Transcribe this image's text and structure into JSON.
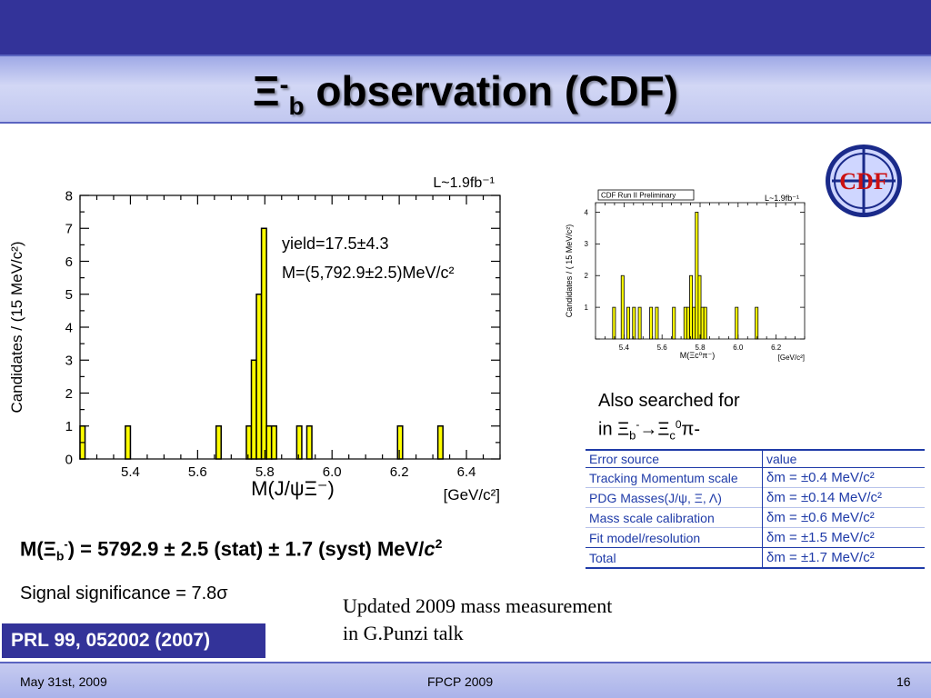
{
  "slide": {
    "title": {
      "xi": "Ξ",
      "sup": "-",
      "sub": "b",
      "rest": " observation (CDF)"
    },
    "main_result": {
      "prefix": "M(Ξ",
      "sub": "b",
      "sup": "-",
      "body": ") = 5792.9 ± 2.5 (stat) ± 1.7 (syst) MeV/",
      "c": "c",
      "exp": "2"
    },
    "significance": "Signal significance = 7.8σ",
    "also_searched": {
      "line1": "Also searched for",
      "line2_prefix": "in Ξ",
      "sub1": "b",
      "sup1": "-",
      "arrow": "→Ξ",
      "sub2": "c",
      "sup2": "0",
      "tail": "π-"
    },
    "updated_note": {
      "line1": "Updated 2009 mass measurement",
      "line2": "in G.Punzi talk"
    },
    "reference": "PRL 99, 052002 (2007)",
    "footer": {
      "date": "May 31st, 2009",
      "conference": "FPCP 2009",
      "page": "16"
    },
    "logo_text": "CDF",
    "colors": {
      "header": "#333399",
      "histogram_fill": "#ffff00",
      "table_text": "#1f3ba8"
    }
  },
  "error_table": {
    "headers": [
      "Error source",
      "value"
    ],
    "rows": [
      {
        "source": "Tracking Momentum scale",
        "value": "δm = ±0.4 MeV/c²"
      },
      {
        "source": "PDG Masses(J/ψ, Ξ, Λ)",
        "value": "δm = ±0.14 MeV/c²"
      },
      {
        "source": "Mass scale calibration",
        "value": "δm = ±0.6 MeV/c²"
      },
      {
        "source": "Fit model/resolution",
        "value": "δm = ±1.5 MeV/c²"
      },
      {
        "source": "Total",
        "value": "δm = ±1.7 MeV/c²"
      }
    ]
  },
  "chart_data": [
    {
      "type": "bar",
      "subtype": "histogram",
      "xlabel": "M(J/ψΞ⁻)",
      "xunit": "[GeV/c²]",
      "ylabel": "Candidates / (15 MeV/c²)",
      "lumi": "L~1.9fb⁻¹",
      "annotations": [
        "yield=17.5±4.3",
        "M=(5,792.9±2.5)MeV/c²"
      ],
      "xlim": [
        5.25,
        6.5
      ],
      "ylim": [
        0,
        8
      ],
      "x_ticks": [
        "5.4",
        "5.6",
        "5.8",
        "6.0",
        "6.2",
        "6.4"
      ],
      "y_ticks": [
        "0",
        "1",
        "2",
        "3",
        "4",
        "5",
        "6",
        "7",
        "8"
      ],
      "bin_width": 0.015,
      "bins": [
        {
          "x": 5.25,
          "count": 1
        },
        {
          "x": 5.385,
          "count": 1
        },
        {
          "x": 5.655,
          "count": 1
        },
        {
          "x": 5.745,
          "count": 1
        },
        {
          "x": 5.76,
          "count": 3
        },
        {
          "x": 5.775,
          "count": 5
        },
        {
          "x": 5.79,
          "count": 7
        },
        {
          "x": 5.805,
          "count": 1
        },
        {
          "x": 5.82,
          "count": 1
        },
        {
          "x": 5.895,
          "count": 1
        },
        {
          "x": 5.925,
          "count": 1
        },
        {
          "x": 6.195,
          "count": 1
        },
        {
          "x": 6.315,
          "count": 1
        }
      ],
      "fill": "#ffff00",
      "grid": false
    },
    {
      "type": "bar",
      "subtype": "histogram",
      "banner": "CDF Run II Preliminary",
      "lumi": "L~1.9fb⁻¹",
      "xlabel": "M(Ξc⁰π⁻)",
      "xunit": "[GeV/c²]",
      "ylabel": "Candidates / ( 15 MeV/c²)",
      "xlim": [
        5.25,
        6.35
      ],
      "ylim": [
        0,
        4.3
      ],
      "x_ticks": [
        "5.4",
        "5.6",
        "5.8",
        "6.0",
        "6.2"
      ],
      "y_ticks": [
        "1",
        "2",
        "3",
        "4"
      ],
      "bin_width": 0.015,
      "bins": [
        {
          "x": 5.34,
          "count": 1
        },
        {
          "x": 5.385,
          "count": 2
        },
        {
          "x": 5.415,
          "count": 1
        },
        {
          "x": 5.445,
          "count": 1
        },
        {
          "x": 5.475,
          "count": 1
        },
        {
          "x": 5.535,
          "count": 1
        },
        {
          "x": 5.565,
          "count": 1
        },
        {
          "x": 5.655,
          "count": 1
        },
        {
          "x": 5.715,
          "count": 1
        },
        {
          "x": 5.73,
          "count": 1
        },
        {
          "x": 5.745,
          "count": 2
        },
        {
          "x": 5.76,
          "count": 1
        },
        {
          "x": 5.775,
          "count": 4
        },
        {
          "x": 5.79,
          "count": 2
        },
        {
          "x": 5.805,
          "count": 1
        },
        {
          "x": 5.82,
          "count": 1
        },
        {
          "x": 5.985,
          "count": 1
        },
        {
          "x": 6.09,
          "count": 1
        }
      ],
      "fill": "#ffff00",
      "grid": false
    }
  ]
}
